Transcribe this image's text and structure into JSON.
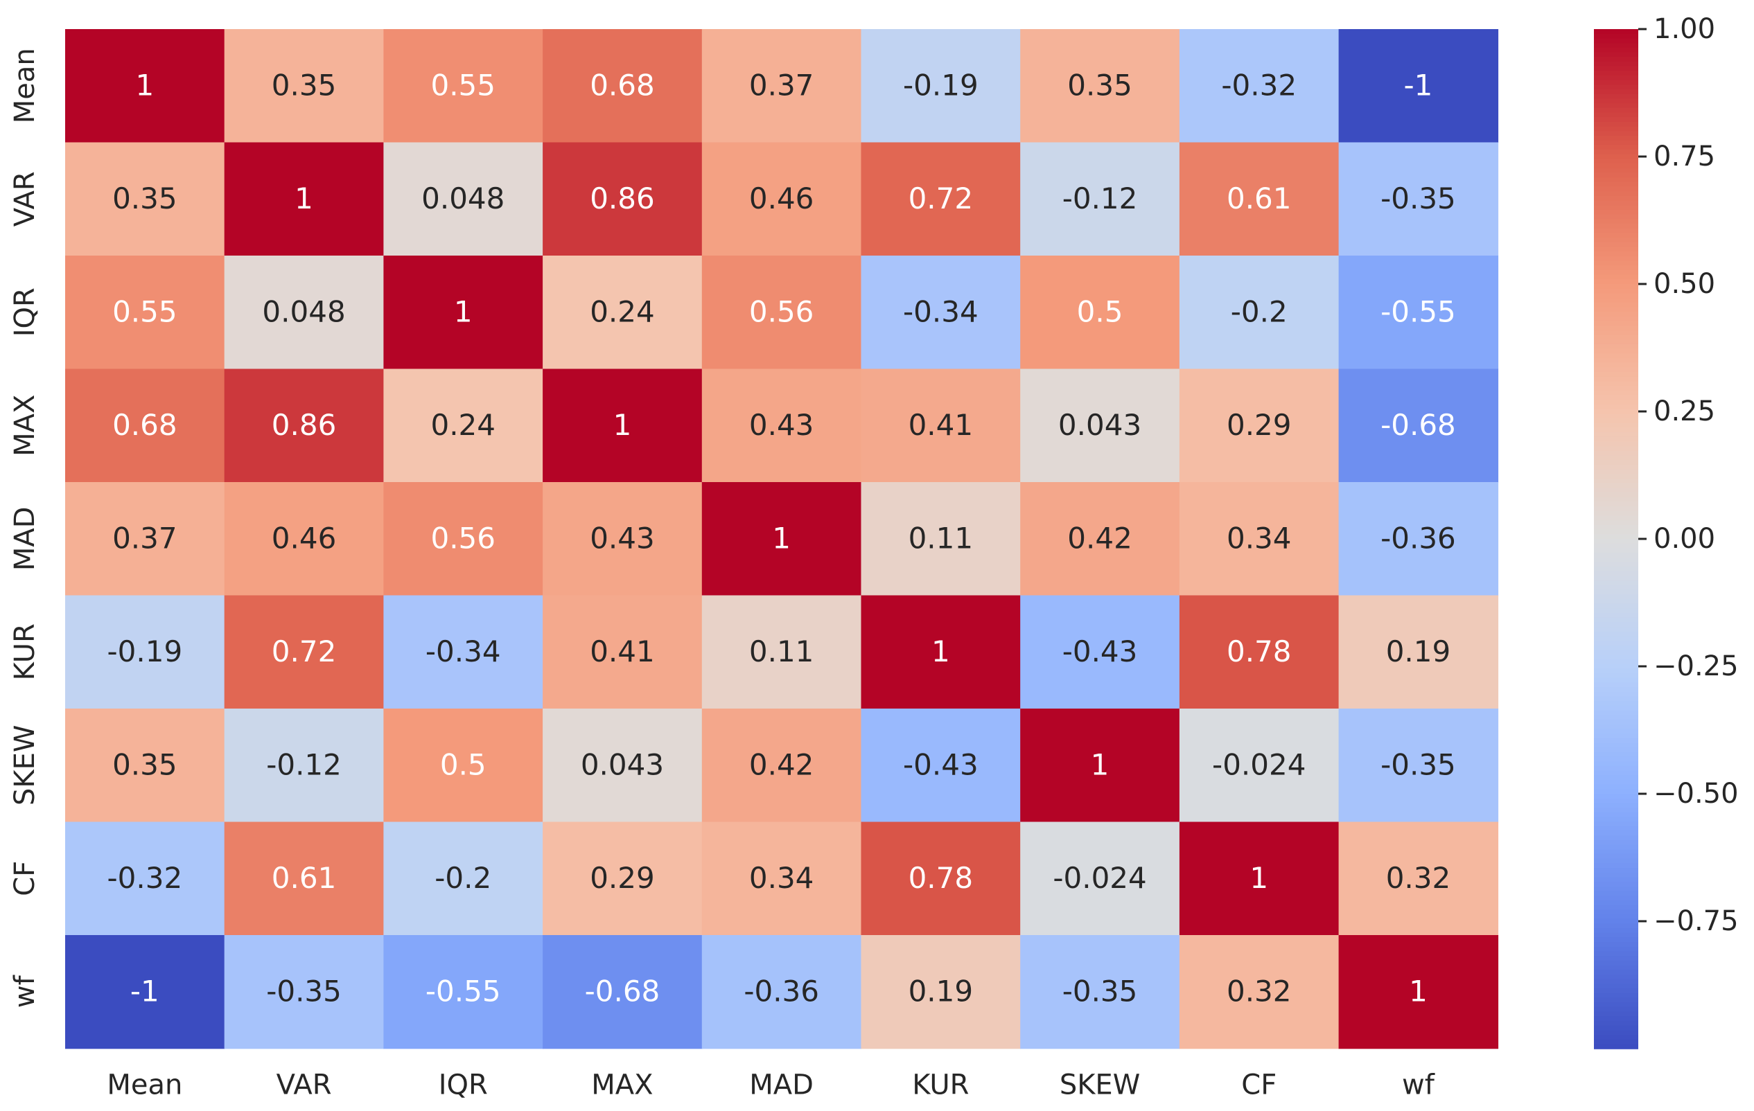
{
  "chart_data": {
    "type": "heatmap",
    "title": "",
    "xlabel": "",
    "ylabel": "",
    "x_categories": [
      "Mean",
      "VAR",
      "IQR",
      "MAX",
      "MAD",
      "KUR",
      "SKEW",
      "CF",
      "wf"
    ],
    "y_categories": [
      "Mean",
      "VAR",
      "IQR",
      "MAX",
      "MAD",
      "KUR",
      "SKEW",
      "CF",
      "wf"
    ],
    "values": [
      [
        1,
        0.35,
        0.55,
        0.68,
        0.37,
        -0.19,
        0.35,
        -0.32,
        -1
      ],
      [
        0.35,
        1,
        0.048,
        0.86,
        0.46,
        0.72,
        -0.12,
        0.61,
        -0.35
      ],
      [
        0.55,
        0.048,
        1,
        0.24,
        0.56,
        -0.34,
        0.5,
        -0.2,
        -0.55
      ],
      [
        0.68,
        0.86,
        0.24,
        1,
        0.43,
        0.41,
        0.043,
        0.29,
        -0.68
      ],
      [
        0.37,
        0.46,
        0.56,
        0.43,
        1,
        0.11,
        0.42,
        0.34,
        -0.36
      ],
      [
        -0.19,
        0.72,
        -0.34,
        0.41,
        0.11,
        1,
        -0.43,
        0.78,
        0.19
      ],
      [
        0.35,
        -0.12,
        0.5,
        0.043,
        0.42,
        -0.43,
        1,
        -0.024,
        -0.35
      ],
      [
        -0.32,
        0.61,
        -0.2,
        0.29,
        0.34,
        0.78,
        -0.024,
        1,
        0.32
      ],
      [
        -1,
        -0.35,
        -0.55,
        -0.68,
        -0.36,
        0.19,
        -0.35,
        0.32,
        1
      ]
    ],
    "value_labels": [
      [
        "1",
        "0.35",
        "0.55",
        "0.68",
        "0.37",
        "-0.19",
        "0.35",
        "-0.32",
        "-1"
      ],
      [
        "0.35",
        "1",
        "0.048",
        "0.86",
        "0.46",
        "0.72",
        "-0.12",
        "0.61",
        "-0.35"
      ],
      [
        "0.55",
        "0.048",
        "1",
        "0.24",
        "0.56",
        "-0.34",
        "0.5",
        "-0.2",
        "-0.55"
      ],
      [
        "0.68",
        "0.86",
        "0.24",
        "1",
        "0.43",
        "0.41",
        "0.043",
        "0.29",
        "-0.68"
      ],
      [
        "0.37",
        "0.46",
        "0.56",
        "0.43",
        "1",
        "0.11",
        "0.42",
        "0.34",
        "-0.36"
      ],
      [
        "-0.19",
        "0.72",
        "-0.34",
        "0.41",
        "0.11",
        "1",
        "-0.43",
        "0.78",
        "0.19"
      ],
      [
        "0.35",
        "-0.12",
        "0.5",
        "0.043",
        "0.42",
        "-0.43",
        "1",
        "-0.024",
        "-0.35"
      ],
      [
        "-0.32",
        "0.61",
        "-0.2",
        "0.29",
        "0.34",
        "0.78",
        "-0.024",
        "1",
        "0.32"
      ],
      [
        "-1",
        "-0.35",
        "-0.55",
        "-0.68",
        "-0.36",
        "0.19",
        "-0.35",
        "0.32",
        "1"
      ]
    ],
    "colormap": "coolwarm",
    "vmin": -1,
    "vmax": 1,
    "grid": false,
    "colorbar": {
      "position": "right",
      "ticks": [
        1,
        0.75,
        0.5,
        0.25,
        0,
        -0.25,
        -0.5,
        -0.75
      ],
      "tick_labels": [
        "1.00",
        "0.75",
        "0.50",
        "0.25",
        "0.00",
        "−0.25",
        "−0.50",
        "−0.75"
      ]
    }
  }
}
